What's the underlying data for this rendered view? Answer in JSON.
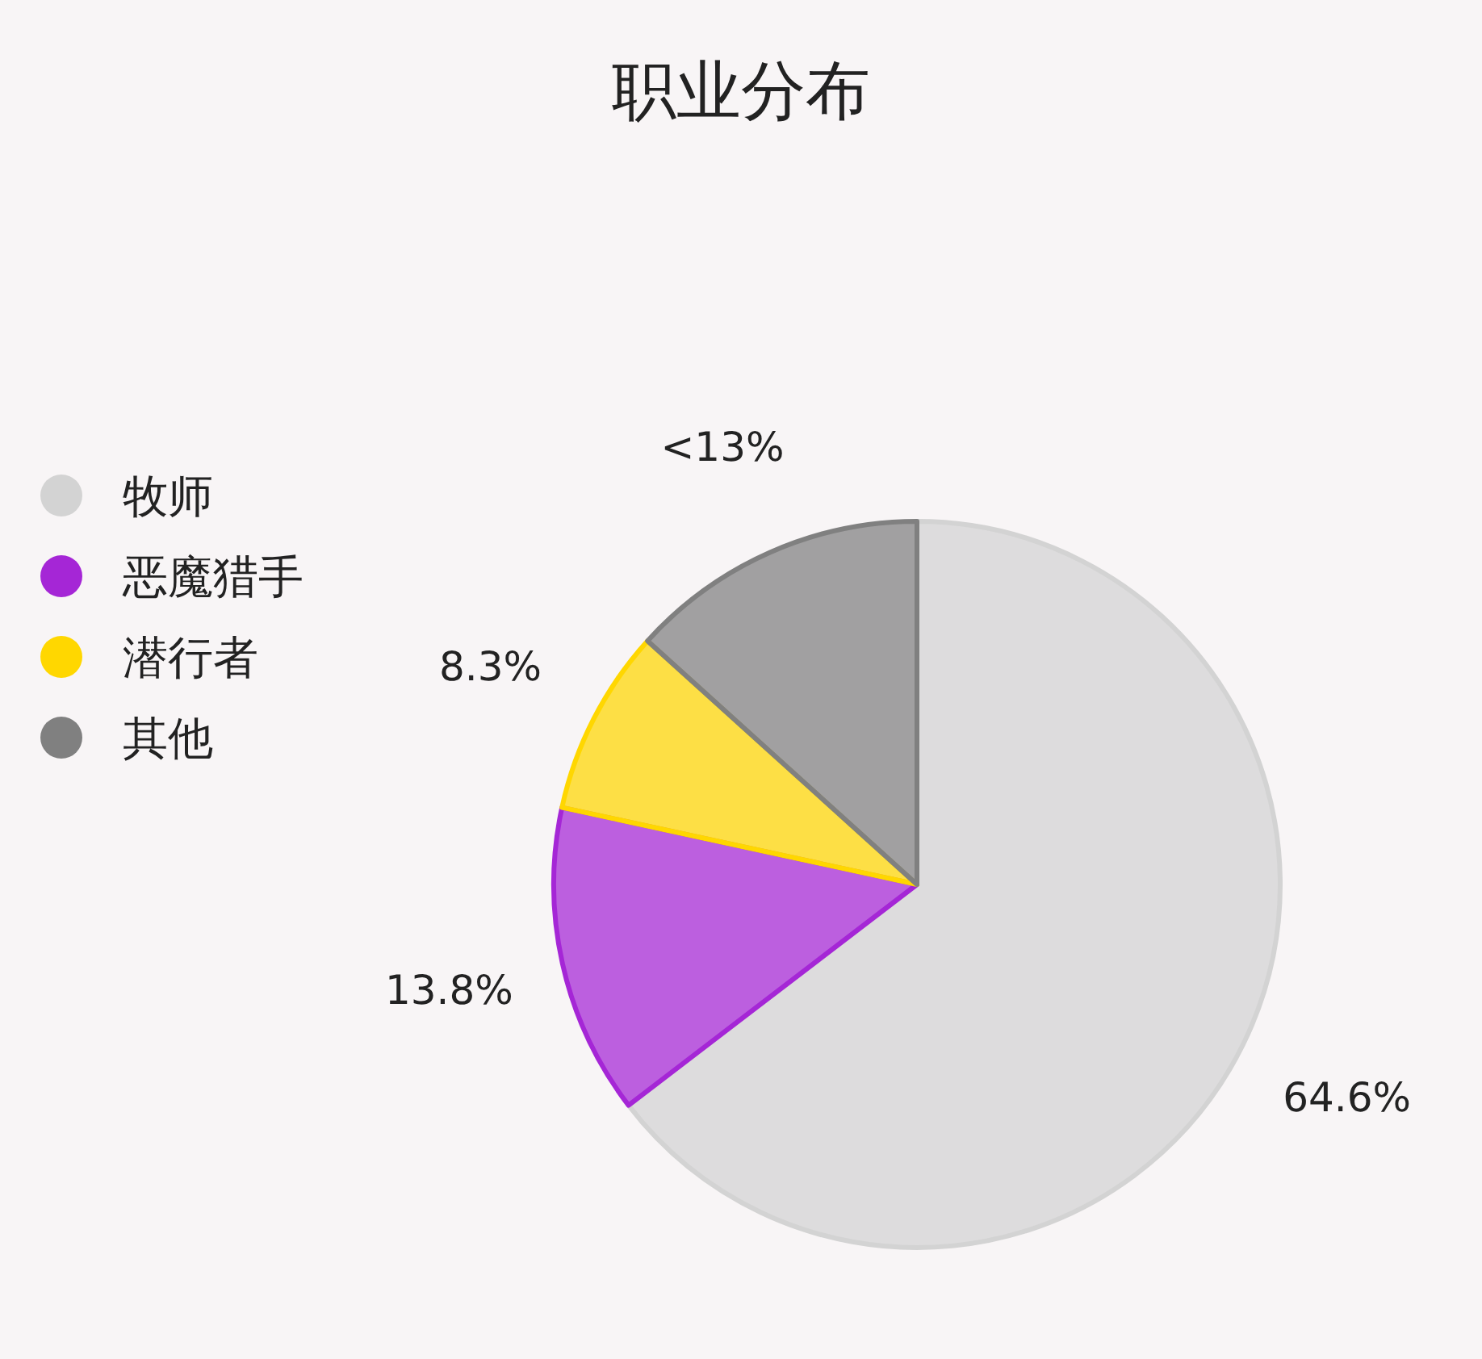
{
  "chart_data": {
    "type": "pie",
    "title": "职业分布",
    "categories": [
      "牧师",
      "恶魔猎手",
      "潜行者",
      "其他"
    ],
    "values": [
      64.6,
      13.8,
      8.3,
      13.3
    ],
    "value_labels": [
      "64.6%",
      "13.8%",
      "8.3%",
      "<13%"
    ],
    "colors": [
      "#d3d3d3",
      "#a526d6",
      "#ffd700",
      "#808080"
    ],
    "legend": "left"
  }
}
